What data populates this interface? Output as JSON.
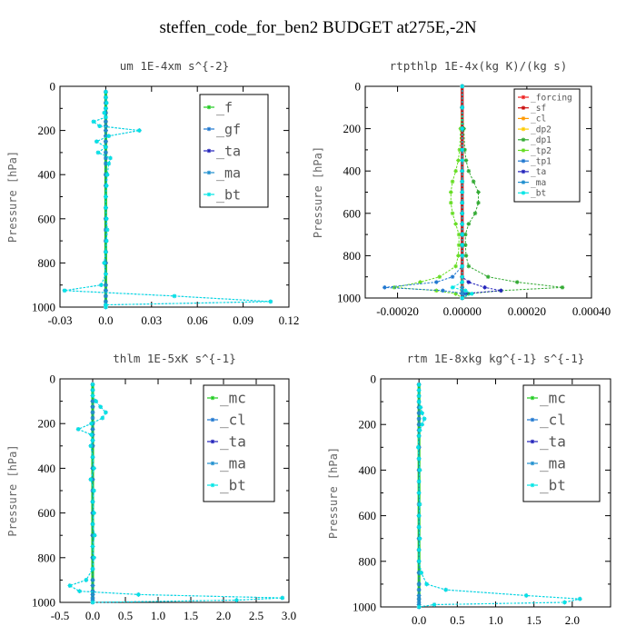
{
  "figure_title": "steffen_code_for_ben2  BUDGET at275E,-2N",
  "chart_data": [
    {
      "type": "line",
      "title": "um   1E-4xm s^{-2}",
      "ylabel": "Pressure [hPa]",
      "xlim": [
        -0.03,
        0.12
      ],
      "ylim": [
        1000,
        0
      ],
      "x_ticks": [
        "-0.03",
        "0.0",
        "0.03",
        "0.06",
        "0.09",
        "0.12"
      ],
      "y_ticks": [
        "0",
        "200",
        "400",
        "600",
        "800",
        "1000"
      ],
      "legend_position": "top-right",
      "y": [
        25,
        50,
        75,
        100,
        120,
        140,
        160,
        180,
        200,
        225,
        250,
        275,
        300,
        325,
        350,
        400,
        450,
        500,
        550,
        600,
        650,
        700,
        750,
        800,
        850,
        900,
        925,
        950,
        975,
        990,
        1000
      ],
      "series": [
        {
          "name": "_f",
          "color": "#22cc22",
          "values": [
            0,
            0,
            0,
            0,
            0,
            0,
            0,
            0,
            0,
            0,
            0,
            0,
            0,
            0,
            0,
            0,
            0,
            0,
            0,
            0,
            0,
            0,
            0,
            0,
            0,
            0,
            0,
            0,
            0,
            0,
            0
          ]
        },
        {
          "name": "_gf",
          "color": "#1f77d0",
          "values": [
            0.0,
            0.0,
            0.0005,
            0.0,
            -0.001,
            0.0,
            -0.008,
            -0.004,
            0.022,
            0.002,
            -0.006,
            0.0,
            -0.005,
            0.003,
            0.002,
            0.001,
            0.0005,
            0.0,
            0.0,
            0.0005,
            0.001,
            0.0005,
            0.0,
            -0.001,
            0.0,
            -0.003,
            -0.027,
            0.045,
            0.108,
            0.0,
            0.0
          ]
        },
        {
          "name": "_ta",
          "color": "#2222bb",
          "values": [
            0.0,
            0.0,
            0.0,
            0.0,
            0.0,
            0.0,
            0.0,
            0.0,
            0.0,
            0.0,
            0.0,
            0.0,
            0.0,
            0.0,
            0.0,
            0.0,
            0.0,
            0.0,
            0.0,
            0.0,
            0.0,
            0.0,
            0.0,
            0.0,
            0.0,
            0.0,
            0.0,
            0.0,
            0.0,
            0.0,
            0.0
          ]
        },
        {
          "name": "_ma",
          "color": "#1f8fcf",
          "values": [
            0.0,
            0.0,
            0.0,
            0.0,
            0.0,
            0.0,
            0.0,
            0.0,
            0.0,
            0.0,
            0.0,
            0.0,
            0.0,
            0.0,
            0.0,
            0.0,
            0.0,
            0.0,
            0.0,
            0.0,
            0.0,
            0.0,
            0.0,
            0.0,
            0.0,
            0.0,
            0.0,
            0.0,
            0.0,
            0.0,
            0.0
          ]
        },
        {
          "name": "_bt",
          "color": "#00e5e5",
          "values": [
            0.0,
            0.0,
            0.0005,
            0.0,
            -0.001,
            0.0,
            -0.008,
            -0.004,
            0.022,
            0.002,
            -0.006,
            0.0,
            -0.005,
            0.003,
            0.002,
            0.001,
            0.0005,
            0.0,
            0.0,
            0.0005,
            0.001,
            0.0005,
            0.0,
            -0.001,
            0.0,
            -0.003,
            -0.027,
            0.045,
            0.108,
            0.0,
            0.0
          ]
        }
      ]
    },
    {
      "type": "line",
      "title": "rtpthlp   1E-4x(kg K)/(kg s)",
      "ylabel": "Pressure [hPa]",
      "xlim": [
        -0.0003,
        0.0004
      ],
      "ylim": [
        1000,
        0
      ],
      "x_ticks": [
        "-0.00020",
        "0.00000",
        "0.00020",
        "0.00040"
      ],
      "y_ticks": [
        "0",
        "200",
        "400",
        "600",
        "800",
        "1000"
      ],
      "legend_position": "top-right",
      "y": [
        0,
        100,
        200,
        300,
        350,
        400,
        450,
        500,
        550,
        600,
        650,
        700,
        750,
        800,
        850,
        900,
        925,
        950,
        965,
        980,
        1000
      ],
      "series": [
        {
          "name": "_forcing",
          "color": "#ee2222",
          "values": [
            0,
            0,
            0,
            0,
            0,
            0,
            0,
            0,
            0,
            0,
            0,
            0,
            0,
            0,
            0,
            0,
            0,
            0,
            0,
            0,
            0
          ]
        },
        {
          "name": "_sf",
          "color": "#cc1111",
          "values": [
            0,
            0,
            0,
            0,
            0,
            0,
            0,
            0,
            0,
            0,
            0,
            0,
            0,
            0,
            0,
            0,
            0,
            0,
            0,
            0,
            0
          ]
        },
        {
          "name": "_cl",
          "color": "#ff9900",
          "values": [
            0,
            0,
            0,
            0,
            0,
            0,
            0,
            0,
            0,
            0,
            0,
            0,
            0,
            0,
            0,
            0,
            0,
            0,
            0,
            0,
            0
          ]
        },
        {
          "name": "_dp2",
          "color": "#ffcc00",
          "values": [
            0,
            0,
            0,
            0,
            0,
            0,
            0,
            0,
            0,
            0,
            0,
            0,
            0,
            0,
            0,
            0,
            0,
            0,
            0,
            0,
            0
          ]
        },
        {
          "name": "_dp1",
          "color": "#33aa33",
          "values": [
            0.0,
            0.0,
            5e-06,
            8e-06,
            1.2e-05,
            2e-05,
            3.5e-05,
            5e-05,
            5e-05,
            4e-05,
            2e-05,
            1e-05,
            1e-05,
            1.2e-05,
            2e-05,
            8e-05,
            0.00017,
            0.00031,
            0.00012,
            2e-05,
            0.0
          ]
        },
        {
          "name": "_tp2",
          "color": "#66dd22",
          "values": [
            0.0,
            0.0,
            -5e-06,
            -8e-06,
            -1.2e-05,
            -2e-05,
            -3e-05,
            -3.5e-05,
            -3.5e-05,
            -3e-05,
            -2e-05,
            -1e-05,
            -1e-05,
            -1.2e-05,
            -2e-05,
            -7e-05,
            -0.00013,
            -0.00021,
            -8e-05,
            -2e-05,
            0.0
          ]
        },
        {
          "name": "_tp1",
          "color": "#1f77d0",
          "values": [
            0.0,
            0.0,
            0.0,
            0.0,
            0.0,
            0.0,
            0.0,
            0.0,
            0.0,
            0.0,
            0.0,
            0.0,
            0.0,
            0.0,
            0.0,
            -3e-05,
            -8e-05,
            -0.00024,
            -6e-05,
            1e-05,
            0.0
          ]
        },
        {
          "name": "_ta",
          "color": "#2222bb",
          "values": [
            0.0,
            0.0,
            0.0,
            0.0,
            0.0,
            0.0,
            0.0,
            0.0,
            0.0,
            0.0,
            0.0,
            0.0,
            0.0,
            0.0,
            0.0,
            0.0,
            2e-05,
            7e-05,
            0.00012,
            0.0,
            0.0
          ]
        },
        {
          "name": "_ma",
          "color": "#1f8fcf",
          "values": [
            0,
            0,
            0,
            0,
            0,
            0,
            0,
            0,
            0,
            0,
            0,
            0,
            0,
            0,
            0,
            0,
            0,
            0,
            0,
            0,
            0
          ]
        },
        {
          "name": "_bt",
          "color": "#00e5e5",
          "values": [
            0.0,
            0.0,
            0.0,
            0.0,
            0.0,
            0.0,
            0.0,
            0.0,
            0.0,
            0.0,
            0.0,
            0.0,
            0.0,
            0.0,
            0.0,
            0.0,
            0.0,
            -3e-05,
            1e-05,
            3e-05,
            0.0
          ]
        }
      ]
    },
    {
      "type": "line",
      "title": "thlm   1E-5xK s^{-1}",
      "ylabel": "Pressure [hPa]",
      "xlim": [
        -0.5,
        3.0
      ],
      "ylim": [
        1000,
        0
      ],
      "x_ticks": [
        "-0.5",
        "0.0",
        "0.5",
        "1.0",
        "1.5",
        "2.0",
        "2.5",
        "3.0"
      ],
      "y_ticks": [
        "0",
        "200",
        "400",
        "600",
        "800",
        "1000"
      ],
      "legend_position": "top-right",
      "y": [
        25,
        50,
        75,
        100,
        125,
        150,
        175,
        200,
        225,
        250,
        275,
        300,
        350,
        400,
        450,
        500,
        550,
        600,
        650,
        700,
        750,
        800,
        850,
        900,
        925,
        950,
        965,
        980,
        990,
        1000
      ],
      "series": [
        {
          "name": "_mc",
          "color": "#22cc22",
          "values": [
            0,
            0,
            0,
            0,
            0,
            0,
            0,
            0,
            0,
            0,
            0,
            0,
            0,
            0,
            0,
            0,
            0,
            0,
            0,
            0,
            0,
            0,
            0,
            0,
            0,
            0,
            0,
            0,
            0,
            0
          ]
        },
        {
          "name": "_cl",
          "color": "#1f77d0",
          "values": [
            0.0,
            0.0,
            0.0,
            0.05,
            0.12,
            0.2,
            0.15,
            -0.02,
            -0.22,
            -0.02,
            0.0,
            -0.03,
            0.0,
            0.02,
            -0.03,
            0.02,
            0.0,
            0.02,
            0.0,
            0.03,
            0.0,
            0.02,
            0.0,
            -0.1,
            -0.35,
            -0.2,
            0.7,
            2.9,
            2.2,
            0.0
          ]
        },
        {
          "name": "_ta",
          "color": "#2222bb",
          "values": [
            0,
            0,
            0,
            0,
            0,
            0,
            0,
            0,
            0,
            0,
            0,
            0,
            0,
            0,
            0,
            0,
            0,
            0,
            0,
            0,
            0,
            0,
            0,
            0,
            0,
            0,
            0,
            0,
            0,
            0
          ]
        },
        {
          "name": "_ma",
          "color": "#1f8fcf",
          "values": [
            0,
            0,
            0,
            0,
            0,
            0,
            0,
            0,
            0,
            0,
            0,
            0,
            0,
            0,
            0,
            0,
            0,
            0,
            0,
            0,
            0,
            0,
            0,
            0,
            0,
            0,
            0,
            0,
            0,
            0
          ]
        },
        {
          "name": "_bt",
          "color": "#00e5e5",
          "values": [
            0.0,
            0.0,
            0.0,
            0.05,
            0.12,
            0.2,
            0.15,
            -0.02,
            -0.22,
            -0.02,
            0.0,
            -0.03,
            0.0,
            0.02,
            -0.03,
            0.02,
            0.0,
            0.02,
            0.0,
            0.03,
            0.0,
            0.02,
            0.0,
            -0.1,
            -0.35,
            -0.2,
            0.7,
            2.9,
            2.2,
            0.0
          ]
        }
      ]
    },
    {
      "type": "line",
      "title": "rtm   1E-8xkg kg^{-1} s^{-1}",
      "ylabel": "Pressure [hPa]",
      "xlim": [
        -0.5,
        2.5
      ],
      "ylim": [
        1000,
        0
      ],
      "x_ticks": [
        "0.0",
        "0.5",
        "1.0",
        "1.5",
        "2.0"
      ],
      "y_ticks": [
        "0",
        "200",
        "400",
        "600",
        "800",
        "1000"
      ],
      "legend_position": "top-right",
      "y": [
        25,
        50,
        75,
        100,
        125,
        150,
        175,
        200,
        225,
        250,
        300,
        350,
        400,
        450,
        500,
        550,
        600,
        650,
        700,
        750,
        800,
        850,
        900,
        925,
        950,
        965,
        980,
        990,
        1000
      ],
      "series": [
        {
          "name": "_mc",
          "color": "#22cc22",
          "values": [
            0,
            0,
            0,
            0,
            0,
            0,
            0,
            0,
            0,
            0,
            0,
            0,
            0,
            0,
            0,
            0,
            0,
            0,
            0,
            0,
            0,
            0,
            0,
            0,
            0,
            0,
            0,
            0,
            0
          ]
        },
        {
          "name": "_cl",
          "color": "#1f77d0",
          "values": [
            0.0,
            0.0,
            0.0,
            0.0,
            0.02,
            0.04,
            0.07,
            0.04,
            0.01,
            0.0,
            -0.01,
            0.0,
            0.01,
            0.0,
            0.0,
            0.01,
            0.0,
            0.0,
            0.01,
            0.0,
            0.0,
            0.03,
            0.1,
            0.35,
            1.4,
            2.1,
            1.9,
            0.2,
            0.0
          ]
        },
        {
          "name": "_ta",
          "color": "#2222bb",
          "values": [
            0,
            0,
            0,
            0,
            0,
            0,
            0,
            0,
            0,
            0,
            0,
            0,
            0,
            0,
            0,
            0,
            0,
            0,
            0,
            0,
            0,
            0,
            0,
            0,
            0,
            0,
            0,
            0,
            0
          ]
        },
        {
          "name": "_ma",
          "color": "#1f8fcf",
          "values": [
            0,
            0,
            0,
            0,
            0,
            0,
            0,
            0,
            0,
            0,
            0,
            0,
            0,
            0,
            0,
            0,
            0,
            0,
            0,
            0,
            0,
            0,
            0,
            0,
            0,
            0,
            0,
            0,
            0
          ]
        },
        {
          "name": "_bt",
          "color": "#00e5e5",
          "values": [
            0.0,
            0.0,
            0.0,
            0.0,
            0.02,
            0.04,
            0.07,
            0.04,
            0.01,
            0.0,
            -0.01,
            0.0,
            0.01,
            0.0,
            0.0,
            0.01,
            0.0,
            0.0,
            0.01,
            0.0,
            0.0,
            0.03,
            0.1,
            0.35,
            1.4,
            2.1,
            1.9,
            0.2,
            0.0
          ]
        }
      ]
    }
  ]
}
